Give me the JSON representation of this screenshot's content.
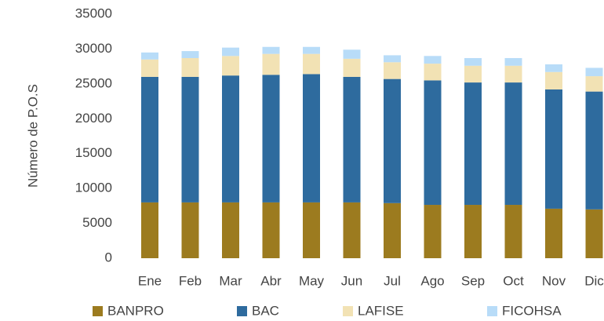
{
  "chart_data": {
    "type": "stacked_bar",
    "y_label": "Número de P.O.S",
    "categories": [
      "Ene",
      "Feb",
      "Mar",
      "Abr",
      "May",
      "Jun",
      "Jul",
      "Ago",
      "Sep",
      "Oct",
      "Nov",
      "Dic"
    ],
    "series": [
      {
        "name": "BANPRO",
        "color": "#9c7b1f",
        "values": [
          8000,
          8000,
          8000,
          8000,
          8000,
          8000,
          7900,
          7650,
          7650,
          7650,
          7100,
          7000
        ]
      },
      {
        "name": "BAC",
        "color": "#2e6b9e",
        "values": [
          18000,
          18000,
          18200,
          18300,
          18400,
          18000,
          17800,
          17850,
          17550,
          17550,
          17100,
          16900
        ]
      },
      {
        "name": "LAFISE",
        "color": "#f2e2b4",
        "values": [
          2500,
          2700,
          2800,
          3000,
          2900,
          2600,
          2400,
          2400,
          2400,
          2400,
          2500,
          2200
        ]
      },
      {
        "name": "FICOHSA",
        "color": "#b8dcf8",
        "values": [
          1000,
          1000,
          1200,
          1000,
          1000,
          1300,
          1000,
          1100,
          1100,
          1100,
          1100,
          1200
        ]
      }
    ],
    "ylim": [
      0,
      35000
    ],
    "yticks": [
      0,
      5000,
      10000,
      15000,
      20000,
      25000,
      30000,
      35000
    ]
  }
}
